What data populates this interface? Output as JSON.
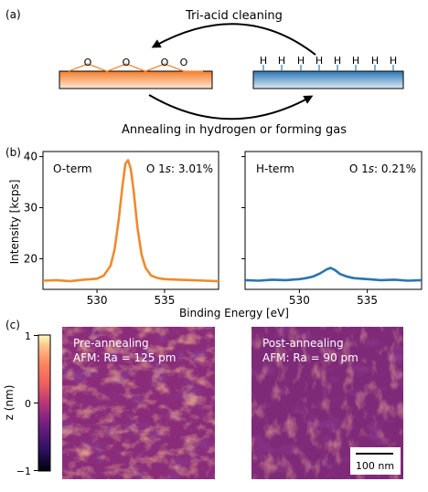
{
  "panel_a": {
    "label": "(a)",
    "top_arrow_label": "Tri-acid cleaning",
    "bottom_arrow_label": "Annealing in hydrogen or forming gas",
    "o_atom": "O",
    "h_atom": "H",
    "o_term_color": "#f08a3c",
    "h_term_color": "#2e7ab8"
  },
  "panel_b": {
    "label": "(b)",
    "y_axis_label": "Intensity [kcps]",
    "x_axis_label": "Binding Energy [eV]",
    "y_ticks": [
      "20",
      "30",
      "40"
    ],
    "x_ticks": [
      "530",
      "535"
    ],
    "left": {
      "name": "O-term",
      "peak_prefix": "O 1",
      "peak_orbital": "s",
      "peak_value": ": 3.01%",
      "color": "#ef8a2e"
    },
    "right": {
      "name": "H-term",
      "peak_prefix": "O 1",
      "peak_orbital": "s",
      "peak_value": ": 0.21%",
      "color": "#2b74b0"
    }
  },
  "panel_c": {
    "label": "(c)",
    "colorbar_label": "z (nm)",
    "colorbar_ticks": [
      "1",
      "0",
      "−1"
    ],
    "left_image": {
      "line1": "Pre-annealing",
      "line2": "AFM: Ra = 125 pm"
    },
    "right_image": {
      "line1": "Post-annealing",
      "line2": "AFM: Ra = 90 pm"
    },
    "scalebar_label": "100 nm"
  },
  "chart_data": [
    {
      "type": "line",
      "title": "",
      "annotations": [
        "O-term",
        "O 1s: 3.01%"
      ],
      "xlabel": "Binding Energy [eV]",
      "ylabel": "Intensity [kcps]",
      "xlim": [
        526,
        539
      ],
      "ylim": [
        14,
        41
      ],
      "series": [
        {
          "x": [
            526,
            527,
            528,
            529,
            530,
            530.5,
            531,
            531.3,
            531.6,
            531.9,
            532.1,
            532.3,
            532.5,
            532.7,
            533,
            533.3,
            533.6,
            534,
            534.5,
            535,
            536,
            537,
            538,
            539
          ],
          "values": [
            15.7,
            15.8,
            15.6,
            15.9,
            16.1,
            16.7,
            18.6,
            21.8,
            27.5,
            34.5,
            38.6,
            39.3,
            37.6,
            33.5,
            26.0,
            20.8,
            18.2,
            16.7,
            16.2,
            16.0,
            15.9,
            15.8,
            15.7,
            15.6
          ]
        }
      ]
    },
    {
      "type": "line",
      "title": "",
      "annotations": [
        "H-term",
        "O 1s: 0.21%"
      ],
      "xlabel": "Binding Energy [eV]",
      "ylabel": "Intensity [kcps]",
      "xlim": [
        526,
        539
      ],
      "ylim": [
        14,
        41
      ],
      "series": [
        {
          "x": [
            526,
            527,
            528,
            529,
            530,
            530.5,
            531,
            531.5,
            532,
            532.3,
            532.6,
            533,
            533.5,
            534,
            535,
            536,
            537,
            538,
            539
          ],
          "values": [
            15.8,
            15.7,
            15.9,
            15.8,
            16.0,
            16.2,
            16.5,
            17.1,
            17.9,
            18.2,
            17.8,
            17.0,
            16.5,
            16.2,
            16.0,
            15.8,
            15.9,
            15.7,
            15.8
          ]
        }
      ]
    }
  ]
}
